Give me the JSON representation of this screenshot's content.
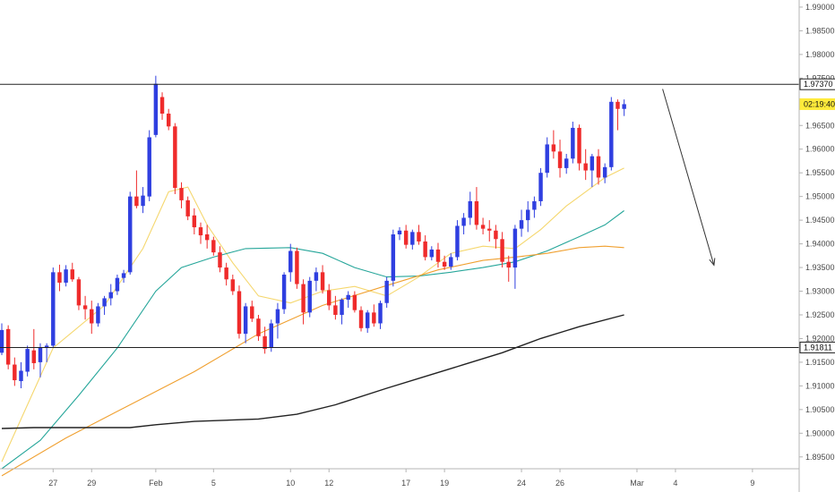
{
  "chart_data": {
    "type": "candlestick",
    "x_ticks": [
      {
        "label": "27",
        "i": 8
      },
      {
        "label": "29",
        "i": 14
      },
      {
        "label": "Feb",
        "i": 24
      },
      {
        "label": "5",
        "i": 33
      },
      {
        "label": "10",
        "i": 45
      },
      {
        "label": "12",
        "i": 51
      },
      {
        "label": "17",
        "i": 63
      },
      {
        "label": "19",
        "i": 69
      },
      {
        "label": "24",
        "i": 81
      },
      {
        "label": "26",
        "i": 87
      },
      {
        "label": "Mar",
        "i": 99
      },
      {
        "label": "4",
        "i": 105
      },
      {
        "label": "9",
        "i": 117
      }
    ],
    "x_range": [
      0,
      124
    ],
    "y_range": [
      1.8925,
      1.9915
    ],
    "y_ticks": [
      "1.99000",
      "1.98500",
      "1.98000",
      "1.97500",
      "1.96500",
      "1.96000",
      "1.95500",
      "1.95000",
      "1.94500",
      "1.94000",
      "1.93500",
      "1.93000",
      "1.92500",
      "1.92000",
      "1.91500",
      "1.91000",
      "1.90500",
      "1.90000",
      "1.89500"
    ],
    "candles": [
      [
        1.917,
        1.9232,
        1.9165,
        1.9218
      ],
      [
        1.922,
        1.9228,
        1.9135,
        1.9145
      ],
      [
        1.9145,
        1.916,
        1.91,
        1.9112
      ],
      [
        1.911,
        1.915,
        1.9095,
        1.9132
      ],
      [
        1.913,
        1.9185,
        1.912,
        1.9178
      ],
      [
        1.9175,
        1.922,
        1.9135,
        1.9148
      ],
      [
        1.915,
        1.919,
        1.9118,
        1.9182
      ],
      [
        1.918,
        1.919,
        1.915,
        1.9185
      ],
      [
        1.9185,
        1.935,
        1.918,
        1.934
      ],
      [
        1.934,
        1.9356,
        1.93,
        1.9318
      ],
      [
        1.9318,
        1.9355,
        1.931,
        1.9346
      ],
      [
        1.9346,
        1.936,
        1.932,
        1.9325
      ],
      [
        1.9325,
        1.933,
        1.926,
        1.927
      ],
      [
        1.927,
        1.929,
        1.924,
        1.9262
      ],
      [
        1.9262,
        1.928,
        1.921,
        1.9232
      ],
      [
        1.9232,
        1.9275,
        1.9225,
        1.9268
      ],
      [
        1.9268,
        1.929,
        1.925,
        1.9285
      ],
      [
        1.9285,
        1.9315,
        1.927,
        1.9298
      ],
      [
        1.93,
        1.9335,
        1.9292,
        1.9328
      ],
      [
        1.9328,
        1.9345,
        1.9318,
        1.9338
      ],
      [
        1.934,
        1.951,
        1.9335,
        1.95
      ],
      [
        1.95,
        1.9555,
        1.9475,
        1.948
      ],
      [
        1.948,
        1.952,
        1.9465,
        1.9502
      ],
      [
        1.95,
        1.964,
        1.949,
        1.9625
      ],
      [
        1.963,
        1.9755,
        1.9625,
        1.9738
      ],
      [
        1.971,
        1.972,
        1.9662,
        1.9675
      ],
      [
        1.9675,
        1.9685,
        1.964,
        1.9648
      ],
      [
        1.9648,
        1.9655,
        1.9505,
        1.9518
      ],
      [
        1.9518,
        1.953,
        1.9475,
        1.9492
      ],
      [
        1.9492,
        1.95,
        1.945,
        1.9458
      ],
      [
        1.946,
        1.9475,
        1.942,
        1.9435
      ],
      [
        1.9435,
        1.9445,
        1.94,
        1.9418
      ],
      [
        1.942,
        1.944,
        1.939,
        1.9408
      ],
      [
        1.9408,
        1.9415,
        1.9375,
        1.9382
      ],
      [
        1.9382,
        1.9395,
        1.934,
        1.935
      ],
      [
        1.935,
        1.936,
        1.9312,
        1.9325
      ],
      [
        1.9325,
        1.9335,
        1.9292,
        1.93
      ],
      [
        1.93,
        1.9312,
        1.92,
        1.921
      ],
      [
        1.921,
        1.9275,
        1.919,
        1.9268
      ],
      [
        1.9268,
        1.928,
        1.9235,
        1.9242
      ],
      [
        1.9242,
        1.925,
        1.9195,
        1.9205
      ],
      [
        1.9205,
        1.9225,
        1.9168,
        1.9178
      ],
      [
        1.918,
        1.924,
        1.9172,
        1.9232
      ],
      [
        1.9232,
        1.9275,
        1.92,
        1.9262
      ],
      [
        1.9262,
        1.934,
        1.9252,
        1.9335
      ],
      [
        1.934,
        1.94,
        1.932,
        1.9385
      ],
      [
        1.9385,
        1.9392,
        1.9305,
        1.9315
      ],
      [
        1.9315,
        1.9325,
        1.923,
        1.9255
      ],
      [
        1.9255,
        1.933,
        1.9245,
        1.9322
      ],
      [
        1.9322,
        1.935,
        1.93,
        1.934
      ],
      [
        1.934,
        1.9355,
        1.9295,
        1.9302
      ],
      [
        1.9302,
        1.9315,
        1.926,
        1.927
      ],
      [
        1.927,
        1.929,
        1.924,
        1.925
      ],
      [
        1.925,
        1.9285,
        1.923,
        1.9282
      ],
      [
        1.9282,
        1.93,
        1.9265,
        1.9292
      ],
      [
        1.9292,
        1.93,
        1.9255,
        1.926
      ],
      [
        1.926,
        1.9268,
        1.9215,
        1.9222
      ],
      [
        1.9222,
        1.926,
        1.9212,
        1.9255
      ],
      [
        1.9255,
        1.9272,
        1.9225,
        1.9232
      ],
      [
        1.9232,
        1.928,
        1.922,
        1.9275
      ],
      [
        1.9275,
        1.933,
        1.9265,
        1.9322
      ],
      [
        1.9322,
        1.943,
        1.931,
        1.942
      ],
      [
        1.942,
        1.9435,
        1.9408,
        1.9428
      ],
      [
        1.9428,
        1.944,
        1.939,
        1.9398
      ],
      [
        1.9398,
        1.943,
        1.9388,
        1.9425
      ],
      [
        1.9425,
        1.944,
        1.9398,
        1.9405
      ],
      [
        1.9405,
        1.9418,
        1.9365,
        1.9372
      ],
      [
        1.9372,
        1.9395,
        1.9365,
        1.9388
      ],
      [
        1.9388,
        1.9402,
        1.935,
        1.9362
      ],
      [
        1.9362,
        1.9375,
        1.9345,
        1.9352
      ],
      [
        1.9352,
        1.938,
        1.9345,
        1.9372
      ],
      [
        1.9372,
        1.945,
        1.9365,
        1.9438
      ],
      [
        1.9438,
        1.9465,
        1.942,
        1.9455
      ],
      [
        1.9455,
        1.951,
        1.944,
        1.949
      ],
      [
        1.949,
        1.952,
        1.943,
        1.944
      ],
      [
        1.944,
        1.9455,
        1.942,
        1.9432
      ],
      [
        1.9432,
        1.945,
        1.9405,
        1.9428
      ],
      [
        1.9428,
        1.944,
        1.939,
        1.941
      ],
      [
        1.941,
        1.9425,
        1.935,
        1.9362
      ],
      [
        1.9362,
        1.9375,
        1.932,
        1.935
      ],
      [
        1.935,
        1.944,
        1.9305,
        1.9432
      ],
      [
        1.9432,
        1.9472,
        1.9415,
        1.945
      ],
      [
        1.945,
        1.949,
        1.9425,
        1.9472
      ],
      [
        1.9472,
        1.95,
        1.9455,
        1.949
      ],
      [
        1.949,
        1.956,
        1.948,
        1.955
      ],
      [
        1.955,
        1.9625,
        1.954,
        1.961
      ],
      [
        1.961,
        1.964,
        1.958,
        1.9595
      ],
      [
        1.9595,
        1.962,
        1.954,
        1.956
      ],
      [
        1.956,
        1.959,
        1.9548,
        1.958
      ],
      [
        1.958,
        1.9658,
        1.957,
        1.9645
      ],
      [
        1.9645,
        1.9652,
        1.9555,
        1.957
      ],
      [
        1.957,
        1.96,
        1.9535,
        1.9555
      ],
      [
        1.9555,
        1.959,
        1.952,
        1.9585
      ],
      [
        1.9585,
        1.96,
        1.9525,
        1.954
      ],
      [
        1.954,
        1.957,
        1.9528,
        1.9562
      ],
      [
        1.9562,
        1.971,
        1.9555,
        1.97
      ],
      [
        1.97,
        1.9705,
        1.964,
        1.9685
      ],
      [
        1.9685,
        1.9705,
        1.967,
        1.9695
      ]
    ],
    "moving_averages": [
      {
        "color": "#f5d76e",
        "points": [
          [
            0,
            1.894
          ],
          [
            8,
            1.918
          ],
          [
            16,
            1.927
          ],
          [
            22,
            1.939
          ],
          [
            26,
            1.951
          ],
          [
            29,
            1.952
          ],
          [
            32,
            1.944
          ],
          [
            36,
            1.936
          ],
          [
            40,
            1.929
          ],
          [
            45,
            1.9275
          ],
          [
            50,
            1.93
          ],
          [
            55,
            1.931
          ],
          [
            60,
            1.929
          ],
          [
            65,
            1.933
          ],
          [
            70,
            1.938
          ],
          [
            75,
            1.9395
          ],
          [
            80,
            1.939
          ],
          [
            84,
            1.943
          ],
          [
            88,
            1.948
          ],
          [
            91,
            1.951
          ],
          [
            94,
            1.954
          ],
          [
            97,
            1.956
          ]
        ]
      },
      {
        "color": "#26a69a",
        "points": [
          [
            0,
            1.8925
          ],
          [
            6,
            1.8985
          ],
          [
            12,
            1.908
          ],
          [
            18,
            1.918
          ],
          [
            24,
            1.93
          ],
          [
            28,
            1.935
          ],
          [
            33,
            1.9372
          ],
          [
            38,
            1.939
          ],
          [
            45,
            1.9392
          ],
          [
            50,
            1.938
          ],
          [
            55,
            1.935
          ],
          [
            60,
            1.933
          ],
          [
            65,
            1.9332
          ],
          [
            70,
            1.934
          ],
          [
            75,
            1.935
          ],
          [
            80,
            1.9362
          ],
          [
            85,
            1.9385
          ],
          [
            90,
            1.9415
          ],
          [
            94,
            1.944
          ],
          [
            97,
            1.947
          ]
        ]
      },
      {
        "color": "#f0a030",
        "points": [
          [
            0,
            1.891
          ],
          [
            10,
            1.899
          ],
          [
            20,
            1.906
          ],
          [
            30,
            1.913
          ],
          [
            40,
            1.921
          ],
          [
            50,
            1.927
          ],
          [
            60,
            1.9312
          ],
          [
            68,
            1.9345
          ],
          [
            75,
            1.9365
          ],
          [
            80,
            1.9372
          ],
          [
            85,
            1.938
          ],
          [
            90,
            1.9392
          ],
          [
            94,
            1.9395
          ],
          [
            97,
            1.9392
          ]
        ]
      },
      {
        "color": "#222222",
        "points": [
          [
            0,
            1.901
          ],
          [
            5,
            1.9012
          ],
          [
            12,
            1.9012
          ],
          [
            20,
            1.9012
          ],
          [
            24,
            1.9018
          ],
          [
            30,
            1.9025
          ],
          [
            40,
            1.903
          ],
          [
            46,
            1.904
          ],
          [
            52,
            1.906
          ],
          [
            60,
            1.9095
          ],
          [
            66,
            1.912
          ],
          [
            72,
            1.9145
          ],
          [
            78,
            1.917
          ],
          [
            84,
            1.92
          ],
          [
            90,
            1.9225
          ],
          [
            97,
            1.925
          ]
        ]
      }
    ],
    "h_lines": [
      {
        "value": 1.9737,
        "label": "1.97370"
      },
      {
        "value": 1.91811,
        "label": "1.91811"
      }
    ],
    "countdown": {
      "value": 1.9695,
      "label": "02:19:40",
      "color": "#ffeb3b"
    },
    "arrow": {
      "from": [
        103,
        1.9727
      ],
      "to": [
        111,
        1.9355
      ]
    },
    "colors": {
      "up": "#2f3fe0",
      "down": "#ef2b2b",
      "axis": "#b4b4b4",
      "text": "#4a4a4a"
    }
  }
}
